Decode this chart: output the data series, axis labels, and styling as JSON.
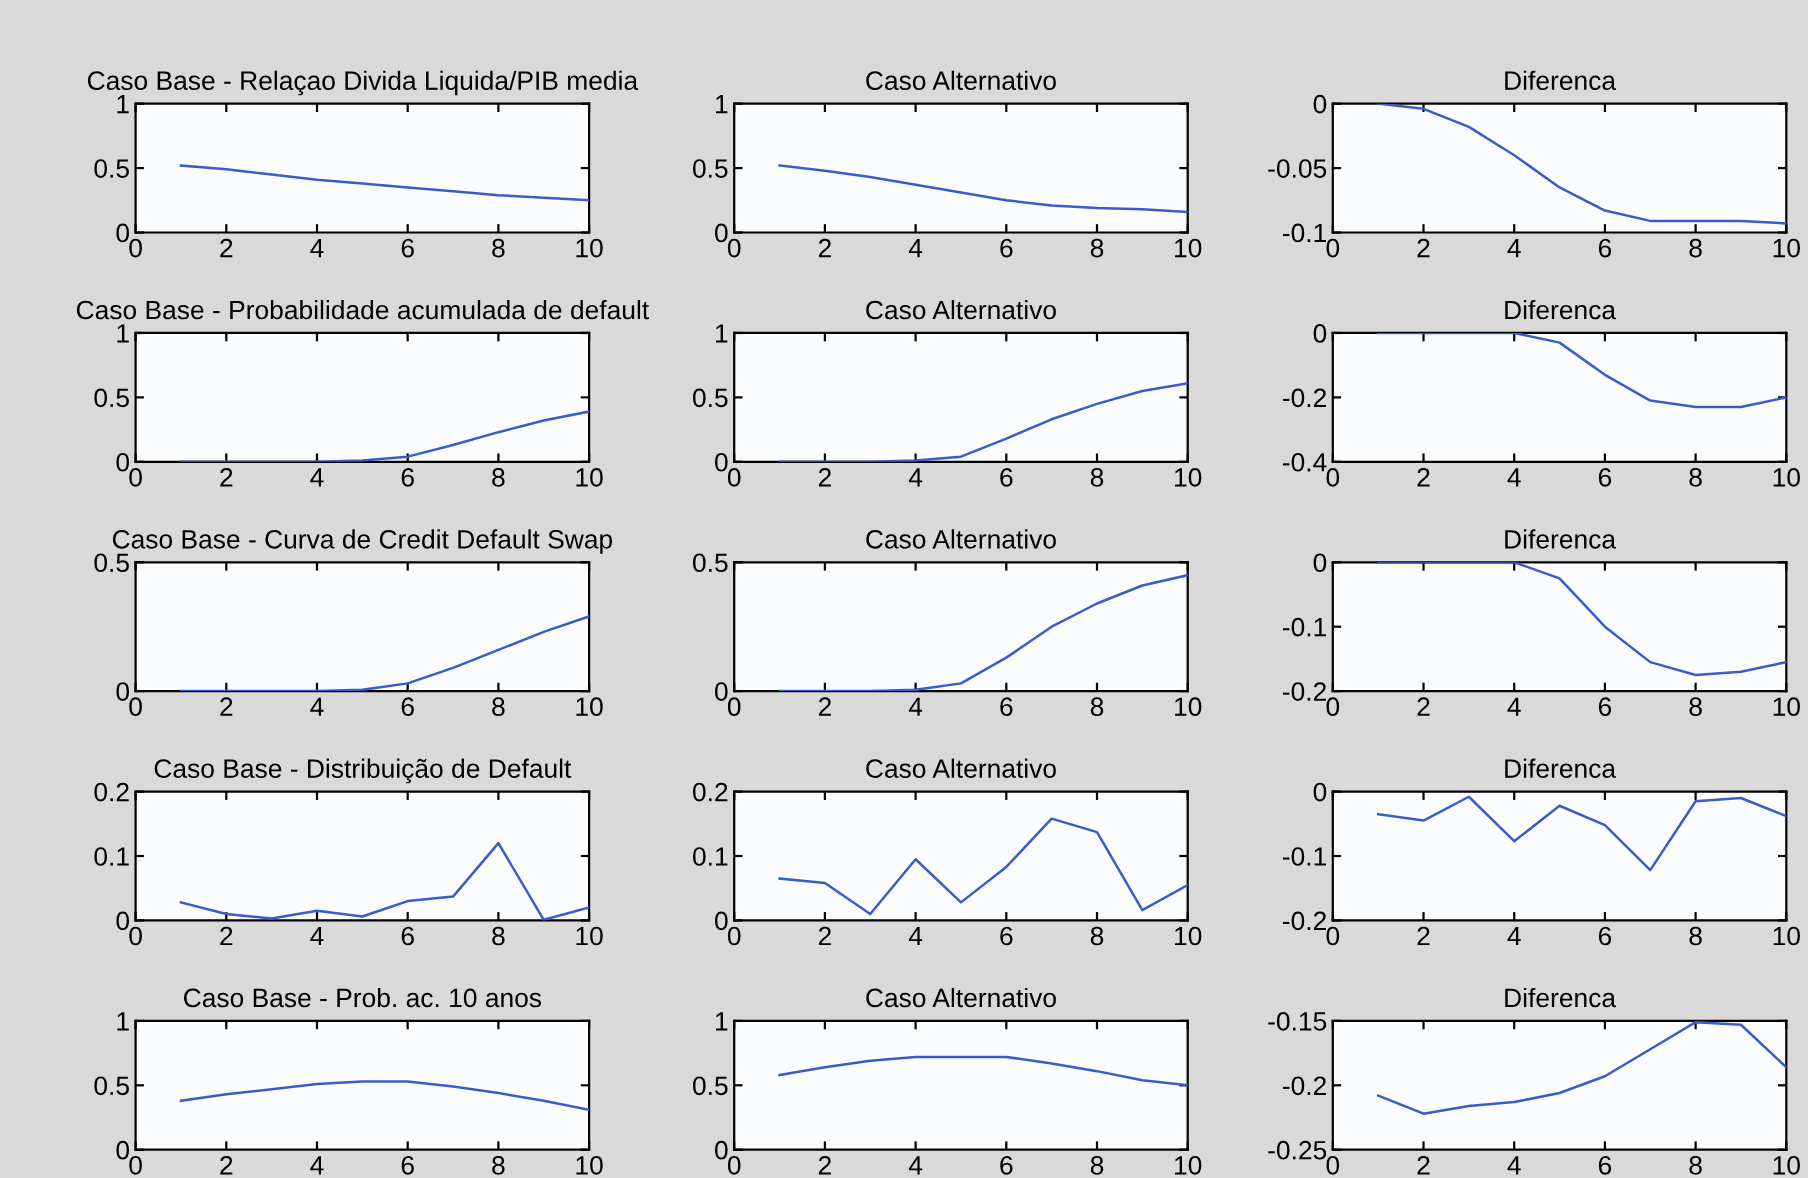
{
  "chart_data": [
    {
      "type": "line",
      "title": "Caso Base - Relaçao Divida Liquida/PIB media",
      "x": [
        1,
        2,
        3,
        4,
        5,
        6,
        7,
        8,
        9,
        10
      ],
      "series": [
        {
          "color": "#3a5cc8",
          "values": [
            0.52,
            0.49,
            0.45,
            0.41,
            0.38,
            0.35,
            0.32,
            0.29,
            0.27,
            0.25
          ]
        }
      ],
      "xlim": [
        0,
        10
      ],
      "xticks": [
        0,
        2,
        4,
        6,
        8,
        10
      ],
      "ylim": [
        0,
        1
      ],
      "yticks": [
        0,
        0.5,
        1
      ],
      "grid": false,
      "legend": false
    },
    {
      "type": "line",
      "title": "Caso Alternativo",
      "x": [
        1,
        2,
        3,
        4,
        5,
        6,
        7,
        8,
        9,
        10
      ],
      "series": [
        {
          "color": "#3a5cc8",
          "values": [
            0.52,
            0.48,
            0.43,
            0.37,
            0.31,
            0.25,
            0.21,
            0.19,
            0.18,
            0.16
          ]
        }
      ],
      "xlim": [
        0,
        10
      ],
      "xticks": [
        0,
        2,
        4,
        6,
        8,
        10
      ],
      "ylim": [
        0,
        1
      ],
      "yticks": [
        0,
        0.5,
        1
      ],
      "grid": false,
      "legend": false
    },
    {
      "type": "line",
      "title": "Diferenca",
      "x": [
        1,
        2,
        3,
        4,
        5,
        6,
        7,
        8,
        9,
        10
      ],
      "series": [
        {
          "color": "#3a5cc8",
          "values": [
            0,
            -0.004,
            -0.018,
            -0.04,
            -0.065,
            -0.083,
            -0.091,
            -0.091,
            -0.091,
            -0.093
          ]
        }
      ],
      "xlim": [
        0,
        10
      ],
      "xticks": [
        0,
        2,
        4,
        6,
        8,
        10
      ],
      "ylim": [
        -0.1,
        0
      ],
      "yticks": [
        -0.1,
        -0.05,
        0
      ],
      "grid": false,
      "legend": false
    },
    {
      "type": "line",
      "title": "Caso Base - Probabilidade acumulada de default",
      "x": [
        1,
        2,
        3,
        4,
        5,
        6,
        7,
        8,
        9,
        10
      ],
      "series": [
        {
          "color": "#3a5cc8",
          "values": [
            0,
            0,
            0,
            0,
            0.01,
            0.04,
            0.13,
            0.23,
            0.32,
            0.39
          ]
        }
      ],
      "xlim": [
        0,
        10
      ],
      "xticks": [
        0,
        2,
        4,
        6,
        8,
        10
      ],
      "ylim": [
        0,
        1
      ],
      "yticks": [
        0,
        0.5,
        1
      ],
      "grid": false,
      "legend": false
    },
    {
      "type": "line",
      "title": "Caso Alternativo",
      "x": [
        1,
        2,
        3,
        4,
        5,
        6,
        7,
        8,
        9,
        10
      ],
      "series": [
        {
          "color": "#3a5cc8",
          "values": [
            0,
            0,
            0,
            0.01,
            0.04,
            0.18,
            0.33,
            0.45,
            0.55,
            0.61
          ]
        }
      ],
      "xlim": [
        0,
        10
      ],
      "xticks": [
        0,
        2,
        4,
        6,
        8,
        10
      ],
      "ylim": [
        0,
        1
      ],
      "yticks": [
        0,
        0.5,
        1
      ],
      "grid": false,
      "legend": false
    },
    {
      "type": "line",
      "title": "Diferenca",
      "x": [
        1,
        2,
        3,
        4,
        5,
        6,
        7,
        8,
        9,
        10
      ],
      "series": [
        {
          "color": "#3a5cc8",
          "values": [
            0,
            0,
            0,
            0,
            -0.03,
            -0.13,
            -0.21,
            -0.23,
            -0.23,
            -0.2
          ]
        }
      ],
      "xlim": [
        0,
        10
      ],
      "xticks": [
        0,
        2,
        4,
        6,
        8,
        10
      ],
      "ylim": [
        -0.4,
        0
      ],
      "yticks": [
        -0.4,
        -0.2,
        0
      ],
      "grid": false,
      "legend": false
    },
    {
      "type": "line",
      "title": "Caso Base - Curva de Credit Default Swap",
      "x": [
        1,
        2,
        3,
        4,
        5,
        6,
        7,
        8,
        9,
        10
      ],
      "series": [
        {
          "color": "#3a5cc8",
          "values": [
            0,
            0,
            0,
            0,
            0.005,
            0.03,
            0.09,
            0.16,
            0.23,
            0.29
          ]
        }
      ],
      "xlim": [
        0,
        10
      ],
      "xticks": [
        0,
        2,
        4,
        6,
        8,
        10
      ],
      "ylim": [
        0,
        0.5
      ],
      "yticks": [
        0,
        0.5
      ],
      "grid": false,
      "legend": false
    },
    {
      "type": "line",
      "title": "Caso Alternativo",
      "x": [
        1,
        2,
        3,
        4,
        5,
        6,
        7,
        8,
        9,
        10
      ],
      "series": [
        {
          "color": "#3a5cc8",
          "values": [
            0,
            0,
            0,
            0.005,
            0.03,
            0.13,
            0.25,
            0.34,
            0.41,
            0.45
          ]
        }
      ],
      "xlim": [
        0,
        10
      ],
      "xticks": [
        0,
        2,
        4,
        6,
        8,
        10
      ],
      "ylim": [
        0,
        0.5
      ],
      "yticks": [
        0,
        0.5
      ],
      "grid": false,
      "legend": false
    },
    {
      "type": "line",
      "title": "Diferenca",
      "x": [
        1,
        2,
        3,
        4,
        5,
        6,
        7,
        8,
        9,
        10
      ],
      "series": [
        {
          "color": "#3a5cc8",
          "values": [
            0,
            0,
            0,
            0,
            -0.025,
            -0.1,
            -0.155,
            -0.175,
            -0.17,
            -0.155
          ]
        }
      ],
      "xlim": [
        0,
        10
      ],
      "xticks": [
        0,
        2,
        4,
        6,
        8,
        10
      ],
      "ylim": [
        -0.2,
        0
      ],
      "yticks": [
        -0.2,
        -0.1,
        0
      ],
      "grid": false,
      "legend": false
    },
    {
      "type": "line",
      "title": "Caso Base - Distribuição de Default",
      "x": [
        1,
        2,
        3,
        4,
        5,
        6,
        7,
        8,
        9,
        10
      ],
      "series": [
        {
          "color": "#3a5cc8",
          "values": [
            0.028,
            0.01,
            0.003,
            0.015,
            0.006,
            0.03,
            0.037,
            0.12,
            0.001,
            0.02
          ]
        }
      ],
      "xlim": [
        0,
        10
      ],
      "xticks": [
        0,
        2,
        4,
        6,
        8,
        10
      ],
      "ylim": [
        0,
        0.2
      ],
      "yticks": [
        0,
        0.1,
        0.2
      ],
      "grid": false,
      "legend": false
    },
    {
      "type": "line",
      "title": "Caso Alternativo",
      "x": [
        1,
        2,
        3,
        4,
        5,
        6,
        7,
        8,
        9,
        10
      ],
      "series": [
        {
          "color": "#3a5cc8",
          "values": [
            0.065,
            0.058,
            0.01,
            0.095,
            0.028,
            0.083,
            0.158,
            0.137,
            0.016,
            0.055
          ]
        }
      ],
      "xlim": [
        0,
        10
      ],
      "xticks": [
        0,
        2,
        4,
        6,
        8,
        10
      ],
      "ylim": [
        0,
        0.2
      ],
      "yticks": [
        0,
        0.1,
        0.2
      ],
      "grid": false,
      "legend": false
    },
    {
      "type": "line",
      "title": "Diferenca",
      "x": [
        1,
        2,
        3,
        4,
        5,
        6,
        7,
        8,
        9,
        10
      ],
      "series": [
        {
          "color": "#3a5cc8",
          "values": [
            -0.035,
            -0.045,
            -0.008,
            -0.077,
            -0.022,
            -0.052,
            -0.122,
            -0.015,
            -0.01,
            -0.038
          ]
        }
      ],
      "xlim": [
        0,
        10
      ],
      "xticks": [
        0,
        2,
        4,
        6,
        8,
        10
      ],
      "ylim": [
        -0.2,
        0
      ],
      "yticks": [
        -0.2,
        -0.1,
        0
      ],
      "grid": false,
      "legend": false
    },
    {
      "type": "line",
      "title": "Caso Base - Prob. ac. 10 anos",
      "x": [
        1,
        2,
        3,
        4,
        5,
        6,
        7,
        8,
        9,
        10
      ],
      "series": [
        {
          "color": "#3a5cc8",
          "values": [
            0.38,
            0.43,
            0.47,
            0.51,
            0.53,
            0.53,
            0.49,
            0.44,
            0.38,
            0.31
          ]
        }
      ],
      "xlim": [
        0,
        10
      ],
      "xticks": [
        0,
        2,
        4,
        6,
        8,
        10
      ],
      "ylim": [
        0,
        1
      ],
      "yticks": [
        0,
        0.5,
        1
      ],
      "grid": false,
      "legend": false
    },
    {
      "type": "line",
      "title": "Caso Alternativo",
      "x": [
        1,
        2,
        3,
        4,
        5,
        6,
        7,
        8,
        9,
        10
      ],
      "series": [
        {
          "color": "#3a5cc8",
          "values": [
            0.58,
            0.64,
            0.69,
            0.72,
            0.72,
            0.72,
            0.67,
            0.61,
            0.54,
            0.5
          ]
        }
      ],
      "xlim": [
        0,
        10
      ],
      "xticks": [
        0,
        2,
        4,
        6,
        8,
        10
      ],
      "ylim": [
        0,
        1
      ],
      "yticks": [
        0,
        0.5,
        1
      ],
      "grid": false,
      "legend": false
    },
    {
      "type": "line",
      "title": "Diferenca",
      "x": [
        1,
        2,
        3,
        4,
        5,
        6,
        7,
        8,
        9,
        10
      ],
      "series": [
        {
          "color": "#3a5cc8",
          "values": [
            -0.208,
            -0.222,
            -0.216,
            -0.213,
            -0.206,
            -0.193,
            -0.172,
            -0.151,
            -0.153,
            -0.186
          ]
        }
      ],
      "xlim": [
        0,
        10
      ],
      "xticks": [
        0,
        2,
        4,
        6,
        8,
        10
      ],
      "ylim": [
        -0.25,
        -0.15
      ],
      "yticks": [
        -0.25,
        -0.2,
        -0.15
      ],
      "grid": false,
      "legend": false
    }
  ]
}
